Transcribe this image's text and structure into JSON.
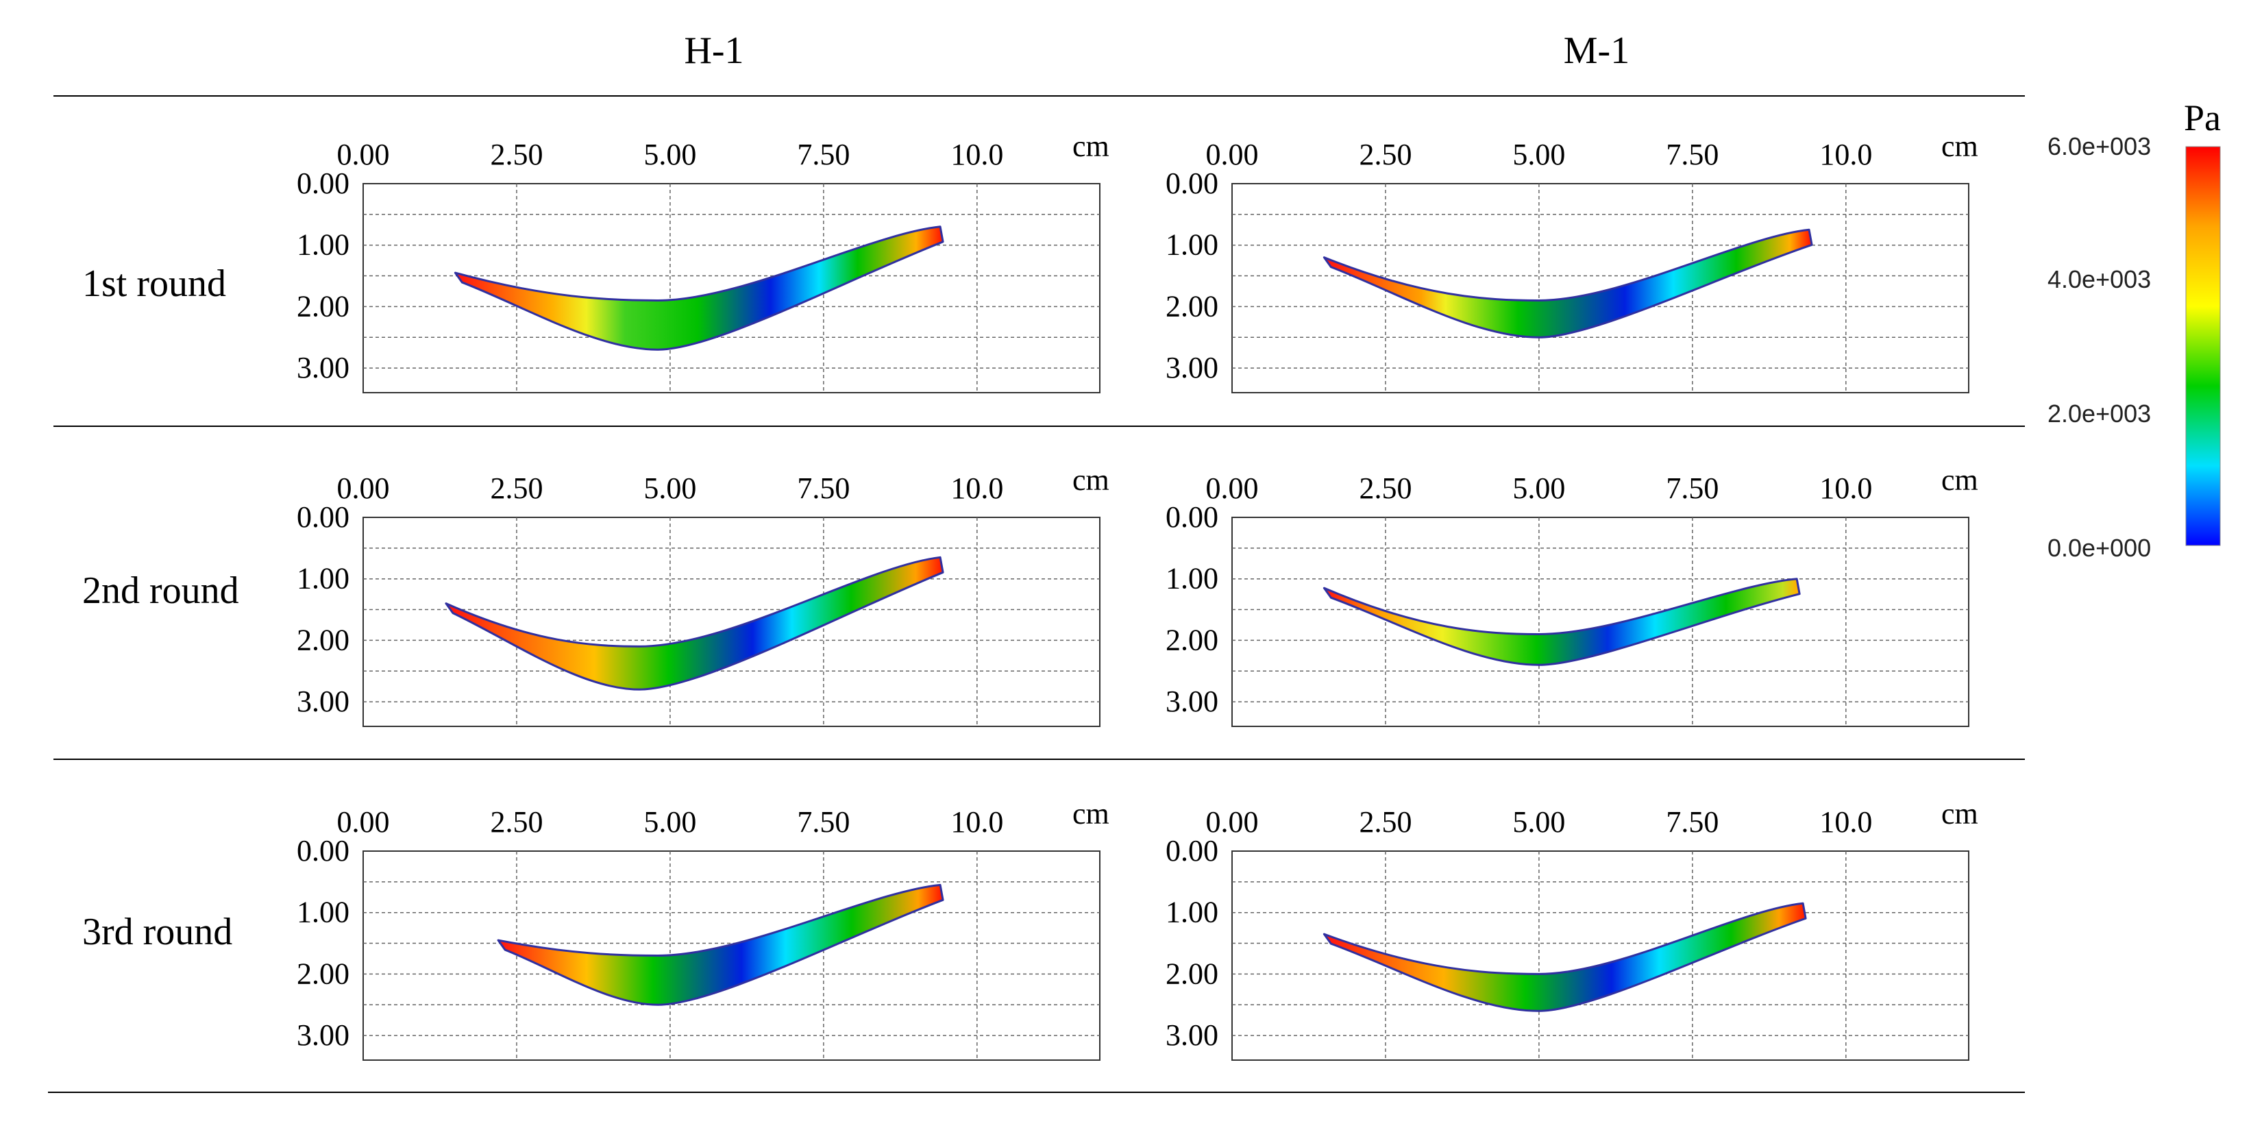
{
  "chart_data": {
    "type": "heatmap",
    "columns": [
      "H-1",
      "M-1"
    ],
    "rows": [
      "1st round",
      "2nd round",
      "3rd round"
    ],
    "x_ticks": [
      "0.00",
      "2.50",
      "5.00",
      "7.50",
      "10.0"
    ],
    "y_ticks": [
      "0.00",
      "1.00",
      "2.00",
      "3.00"
    ],
    "xlim": [
      0,
      12
    ],
    "ylim": [
      0,
      3.4
    ],
    "unit": "cm",
    "colorbar": {
      "unit": "Pa",
      "range": [
        0,
        6000
      ],
      "ticks": [
        "6.0e+003",
        "4.0e+003",
        "2.0e+003",
        "0.0e+000"
      ],
      "stops": [
        "#ff0000",
        "#ffa500",
        "#ffff00",
        "#00d000",
        "#00e0ff",
        "#0000ff"
      ]
    },
    "panels": [
      {
        "column": "H-1",
        "row": "1st round",
        "left_x": 1.5,
        "left_y": 1.45,
        "right_x": 9.4,
        "right_y": 0.7,
        "bottom_x": 4.8,
        "top_y": 1.9,
        "bottom_y": 2.7,
        "gradient": [
          [
            "#ff1010",
            0
          ],
          [
            "#ffb000",
            0.2
          ],
          [
            "#f0f020",
            0.27
          ],
          [
            "#40d020",
            0.35
          ],
          [
            "#00c000",
            0.5
          ],
          [
            "#0020e0",
            0.65
          ],
          [
            "#00e0ff",
            0.75
          ],
          [
            "#00c000",
            0.83
          ],
          [
            "#ffb000",
            0.95
          ],
          [
            "#ff2000",
            1
          ]
        ]
      },
      {
        "column": "M-1",
        "row": "1st round",
        "left_x": 1.5,
        "left_y": 1.2,
        "right_x": 9.4,
        "right_y": 0.75,
        "bottom_x": 5.0,
        "top_y": 1.9,
        "bottom_y": 2.5,
        "gradient": [
          [
            "#ff1010",
            0
          ],
          [
            "#ffa000",
            0.2
          ],
          [
            "#f0f020",
            0.25
          ],
          [
            "#00c000",
            0.4
          ],
          [
            "#0020e0",
            0.62
          ],
          [
            "#00e0ff",
            0.72
          ],
          [
            "#00c000",
            0.85
          ],
          [
            "#ffb000",
            0.96
          ],
          [
            "#ff2000",
            1
          ]
        ]
      },
      {
        "column": "H-1",
        "row": "2nd round",
        "left_x": 1.35,
        "left_y": 1.4,
        "right_x": 9.4,
        "right_y": 0.65,
        "bottom_x": 4.5,
        "top_y": 2.1,
        "bottom_y": 2.8,
        "gradient": [
          [
            "#ff1010",
            0
          ],
          [
            "#ffc000",
            0.3
          ],
          [
            "#00c000",
            0.45
          ],
          [
            "#0020e0",
            0.62
          ],
          [
            "#00e0ff",
            0.7
          ],
          [
            "#00c000",
            0.82
          ],
          [
            "#ffa000",
            0.95
          ],
          [
            "#ff2000",
            1
          ]
        ]
      },
      {
        "column": "M-1",
        "row": "2nd round",
        "left_x": 1.5,
        "left_y": 1.15,
        "right_x": 9.2,
        "right_y": 1.0,
        "bottom_x": 5.0,
        "top_y": 1.9,
        "bottom_y": 2.4,
        "gradient": [
          [
            "#ff1010",
            0
          ],
          [
            "#ffa000",
            0.12
          ],
          [
            "#f0f020",
            0.25
          ],
          [
            "#00c000",
            0.45
          ],
          [
            "#0030e0",
            0.6
          ],
          [
            "#00e0ff",
            0.7
          ],
          [
            "#00c000",
            0.85
          ],
          [
            "#c0e020",
            0.97
          ],
          [
            "#ffb000",
            1
          ]
        ]
      },
      {
        "column": "H-1",
        "row": "3rd round",
        "left_x": 2.2,
        "left_y": 1.45,
        "right_x": 9.4,
        "right_y": 0.55,
        "bottom_x": 4.8,
        "top_y": 1.7,
        "bottom_y": 2.5,
        "gradient": [
          [
            "#ff1010",
            0
          ],
          [
            "#ffc000",
            0.2
          ],
          [
            "#00c000",
            0.35
          ],
          [
            "#0020e0",
            0.55
          ],
          [
            "#00e0ff",
            0.65
          ],
          [
            "#00c000",
            0.8
          ],
          [
            "#ffa000",
            0.95
          ],
          [
            "#ff2000",
            1
          ]
        ]
      },
      {
        "column": "M-1",
        "row": "3rd round",
        "left_x": 1.5,
        "left_y": 1.35,
        "right_x": 9.3,
        "right_y": 0.85,
        "bottom_x": 5.0,
        "top_y": 2.0,
        "bottom_y": 2.6,
        "gradient": [
          [
            "#ff1010",
            0
          ],
          [
            "#ffb000",
            0.25
          ],
          [
            "#00c000",
            0.42
          ],
          [
            "#0020e0",
            0.6
          ],
          [
            "#00e0ff",
            0.7
          ],
          [
            "#00c000",
            0.85
          ],
          [
            "#ffa000",
            0.95
          ],
          [
            "#ff2000",
            1
          ]
        ]
      }
    ]
  }
}
